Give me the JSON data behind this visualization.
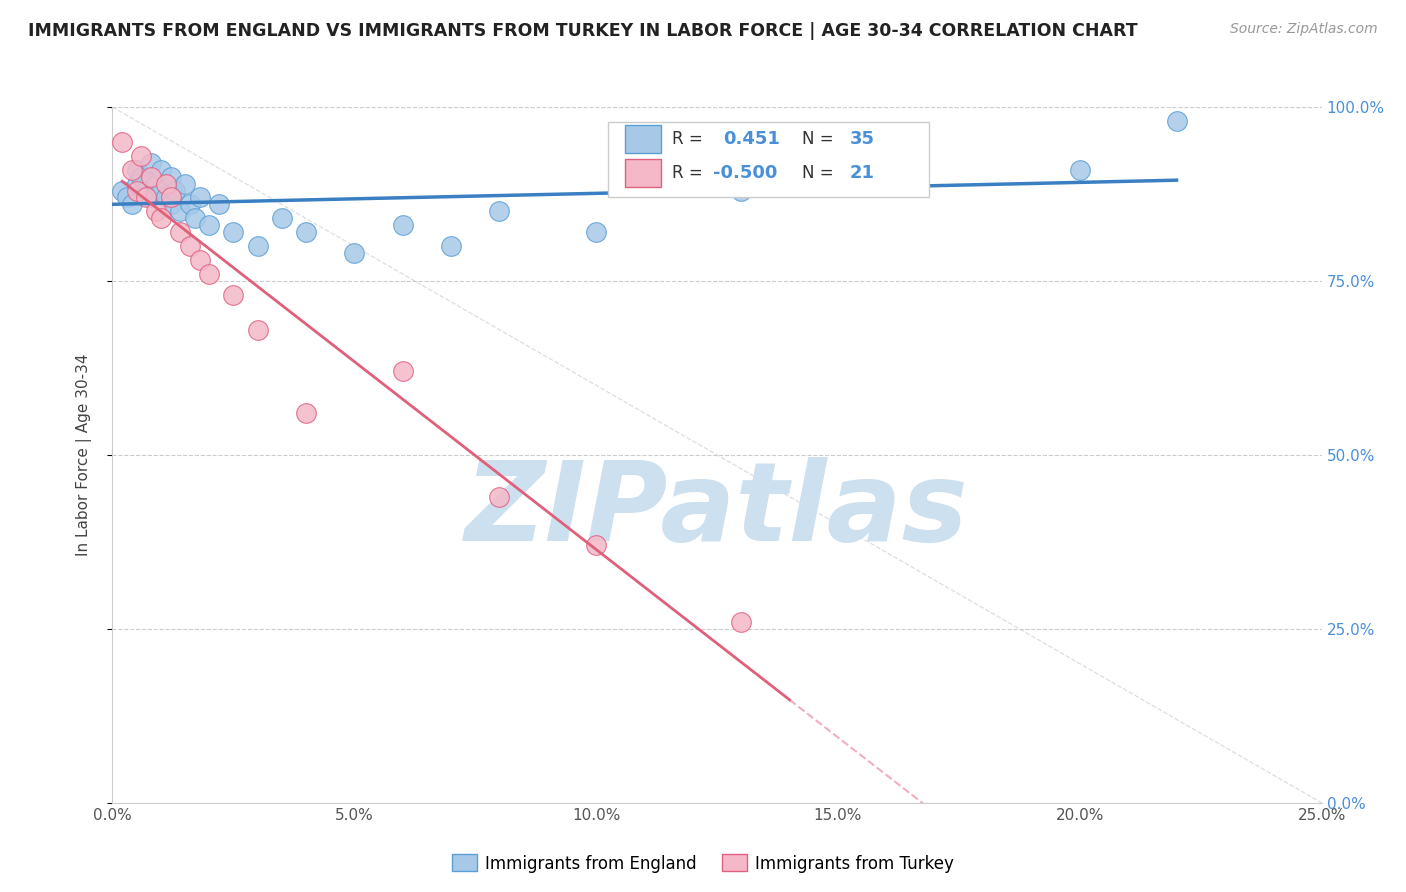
{
  "title": "IMMIGRANTS FROM ENGLAND VS IMMIGRANTS FROM TURKEY IN LABOR FORCE | AGE 30-34 CORRELATION CHART",
  "source": "Source: ZipAtlas.com",
  "ylabel": "In Labor Force | Age 30-34",
  "legend_label1": "Immigrants from England",
  "legend_label2": "Immigrants from Turkey",
  "R1": 0.451,
  "N1": 35,
  "R2": -0.5,
  "N2": 21,
  "xlim": [
    0.0,
    0.25
  ],
  "ylim": [
    0.0,
    1.0
  ],
  "xtick_vals": [
    0.0,
    0.05,
    0.1,
    0.15,
    0.2,
    0.25
  ],
  "ytick_vals": [
    0.0,
    0.25,
    0.5,
    0.75,
    1.0
  ],
  "color_england": "#a8c8e8",
  "color_england_edge": "#5a9fd4",
  "color_turkey": "#f4b8c8",
  "color_turkey_edge": "#e06080",
  "color_england_line": "#3a7fc1",
  "color_turkey_line": "#e0607a",
  "color_diag_line": "#d0d0d0",
  "background": "#ffffff",
  "watermark": "ZIPatlas",
  "watermark_color": "#cce0f0",
  "england_x": [
    0.002,
    0.003,
    0.004,
    0.005,
    0.005,
    0.006,
    0.007,
    0.008,
    0.008,
    0.009,
    0.01,
    0.01,
    0.011,
    0.012,
    0.012,
    0.013,
    0.014,
    0.015,
    0.016,
    0.017,
    0.018,
    0.02,
    0.022,
    0.025,
    0.03,
    0.035,
    0.04,
    0.05,
    0.06,
    0.07,
    0.08,
    0.1,
    0.13,
    0.2,
    0.22
  ],
  "england_y": [
    0.88,
    0.87,
    0.86,
    0.91,
    0.89,
    0.9,
    0.88,
    0.92,
    0.87,
    0.89,
    0.91,
    0.88,
    0.87,
    0.9,
    0.86,
    0.88,
    0.85,
    0.89,
    0.86,
    0.84,
    0.87,
    0.83,
    0.86,
    0.82,
    0.8,
    0.84,
    0.82,
    0.79,
    0.83,
    0.8,
    0.85,
    0.82,
    0.88,
    0.91,
    0.98
  ],
  "turkey_x": [
    0.002,
    0.004,
    0.005,
    0.006,
    0.007,
    0.008,
    0.009,
    0.01,
    0.011,
    0.012,
    0.014,
    0.016,
    0.018,
    0.02,
    0.025,
    0.03,
    0.04,
    0.06,
    0.08,
    0.1,
    0.13
  ],
  "turkey_y": [
    0.95,
    0.91,
    0.88,
    0.93,
    0.87,
    0.9,
    0.85,
    0.84,
    0.89,
    0.87,
    0.82,
    0.8,
    0.78,
    0.76,
    0.73,
    0.68,
    0.56,
    0.62,
    0.44,
    0.37,
    0.26
  ]
}
